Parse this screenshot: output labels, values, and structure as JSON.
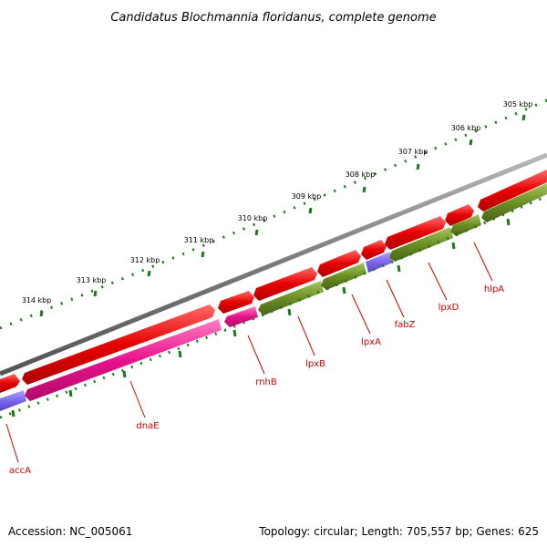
{
  "title": "Candidatus Blochmannia floridanus, complete genome",
  "footer": {
    "accession": "Accession: NC_005061",
    "summary": "Topology: circular; Length: 705,557 bp; Genes: 625"
  },
  "colors": {
    "backbone": "#808080",
    "forward_gene": "#e60000",
    "reverse_pink": "#e8128c",
    "reverse_olive": "#6b8e23",
    "reverse_purple": "#7b68ee",
    "tick": "#1a7a1a",
    "label": "#cc0000"
  },
  "kbp_labels": [
    {
      "text": "305 kbp",
      "kbp": 305
    },
    {
      "text": "306 kbp",
      "kbp": 306
    },
    {
      "text": "307 kbp",
      "kbp": 307
    },
    {
      "text": "308 kbp",
      "kbp": 308
    },
    {
      "text": "309 kbp",
      "kbp": 309
    },
    {
      "text": "310 kbp",
      "kbp": 310
    },
    {
      "text": "311 kbp",
      "kbp": 311
    },
    {
      "text": "312 kbp",
      "kbp": 312
    },
    {
      "text": "313 kbp",
      "kbp": 313
    },
    {
      "text": "314 kbp",
      "kbp": 314
    }
  ],
  "gene_labels": [
    {
      "text": "accA"
    },
    {
      "text": "dnaE"
    },
    {
      "text": "rnhB"
    },
    {
      "text": "lpxB"
    },
    {
      "text": "lpxA"
    },
    {
      "text": "fabZ"
    },
    {
      "text": "lpxD"
    },
    {
      "text": "hlpA"
    }
  ]
}
